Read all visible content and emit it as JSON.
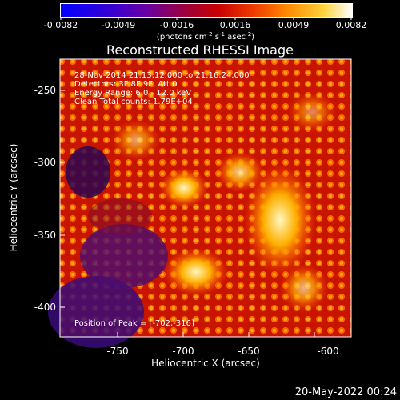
{
  "colorbar": {
    "ticks": [
      "-0.0082",
      "-0.0049",
      "-0.0016",
      "0.0016",
      "0.0049",
      "0.0082"
    ],
    "unit_label": "(photons cm",
    "unit_exp1": "-2",
    "unit_mid": " s",
    "unit_exp2": "-1",
    "unit_mid2": " asec",
    "unit_exp3": "-2",
    "unit_end": ")"
  },
  "plot": {
    "title": "Reconstructed RHESSI Image",
    "annotation_lines": [
      "28-Nov-2014 21:13:12.000 to 21:16:24.000",
      "Detectors: 3F 8F 9F, Att 0",
      "Energy Range: 6.0 - 12.0 keV",
      "Clean    Total counts: 1.79E+04"
    ],
    "peak_text": "Position of Peak = [-702,-316]",
    "x_label": "Heliocentric X (arcsec)",
    "y_label": "Heliocentric Y (arcsec)",
    "x_ticks": [
      "-750",
      "-700",
      "-650",
      "-600"
    ],
    "y_ticks": [
      "-250",
      "-300",
      "-350",
      "-400"
    ]
  },
  "footer": {
    "date": "20-May-2022 00:24"
  }
}
